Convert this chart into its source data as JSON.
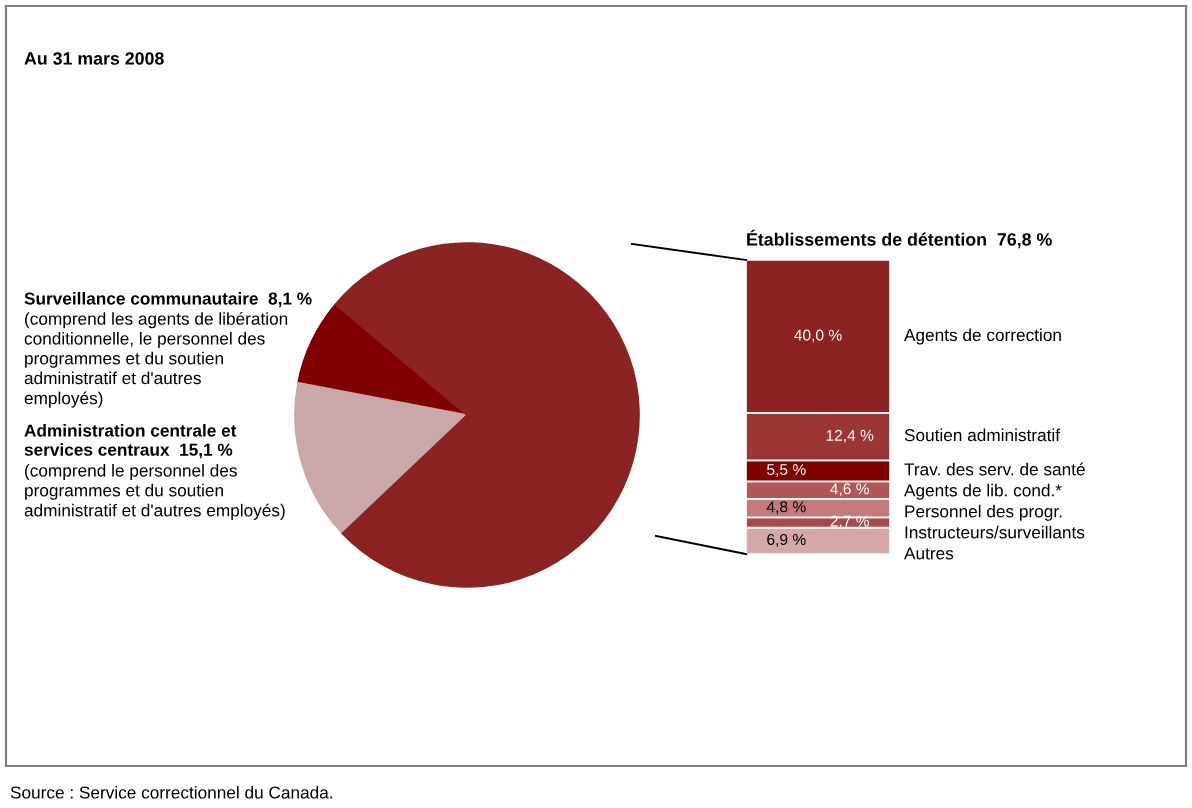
{
  "chart_data": [
    {
      "type": "pie",
      "title": "Au 31 mars 2008",
      "categories": [
        "Surveillance communautaire",
        "Administration centrale et\nservices centraux",
        "Établissements de détention"
      ],
      "values": [
        8.1,
        15.1,
        76.8
      ],
      "colors": [
        "#800000",
        "#c8a8a8",
        "#8b2323"
      ],
      "value_labels": [
        "8,1 %",
        "15,1 %",
        "76,8 %"
      ],
      "annotations": [
        "(comprend les agents de libération\nconditionnelle, le personnel des\nprogrammes et du soutien\nadministratif et d'autres\nemployés)",
        "(comprend le personnel des\nprogrammes et du soutien\nadministratif et d'autres employés)",
        "Source : Service correctionnel du Canada."
      ]
    },
    {
      "type": "bar",
      "stacked": true,
      "categories": [
        null
      ],
      "series": [
        {
          "name": "Autres",
          "color": "#d4a8a8",
          "values": [
            6.9
          ],
          "value_labels": [
            "6,9 %"
          ]
        },
        {
          "name": "Instructeurs/surveillants",
          "color": "#a84848",
          "values": [
            2.7
          ],
          "value_labels": [
            "2,7 %"
          ]
        },
        {
          "name": "Personnel des progr.",
          "color": "#c47a7a",
          "values": [
            4.8
          ],
          "value_labels": [
            "4,8 %"
          ]
        },
        {
          "name": "Agents de lib. cond.*",
          "color": "#b05858",
          "values": [
            4.6
          ],
          "value_labels": [
            "4,6 %"
          ]
        },
        {
          "name": "Trav. des serv. de santé",
          "color": "#800000",
          "values": [
            5.5
          ],
          "value_labels": [
            "5,5 %"
          ]
        },
        {
          "name": "Soutien administratif",
          "color": "#9c3636",
          "values": [
            12.4
          ],
          "value_labels": [
            "12,4 %"
          ]
        },
        {
          "name": "Agents de correction",
          "color": "#8b2323",
          "values": [
            40.0
          ],
          "value_labels": [
            "40,0 %"
          ]
        }
      ]
    }
  ]
}
